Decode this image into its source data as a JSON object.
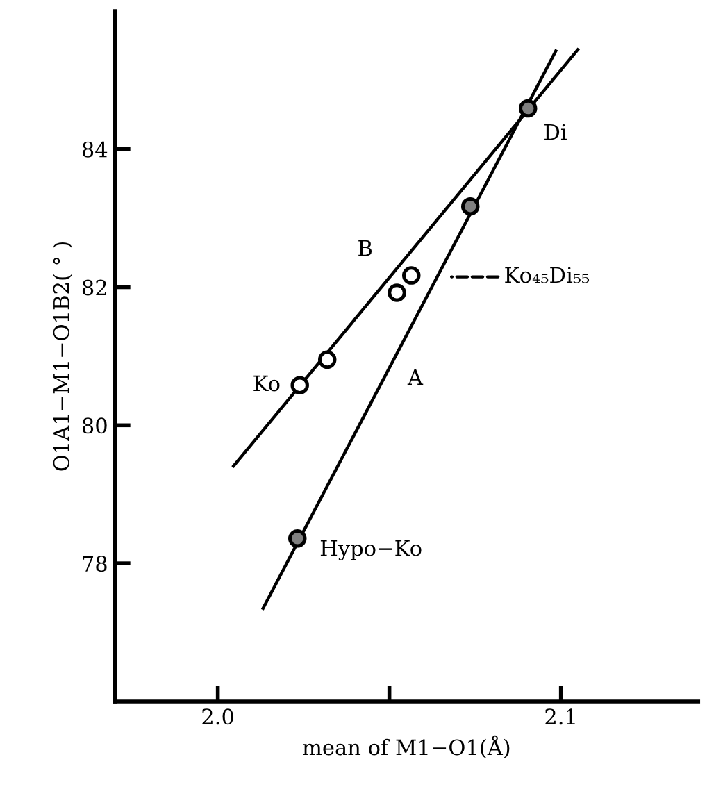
{
  "chart_data": {
    "type": "scatter",
    "xlabel": "mean of M1−O1(Å)",
    "ylabel": "O1A1−M1−O1B2( ° )",
    "xlim": [
      1.97,
      2.14
    ],
    "xticks": [
      {
        "value": 2.0,
        "label": "2.0"
      },
      {
        "value": 2.05,
        "label": null
      },
      2.1
    ],
    "ylim": [
      76,
      86
    ],
    "yticks": [
      78,
      80,
      82,
      84
    ],
    "grid": false,
    "legend": false,
    "series": [
      {
        "type": "line",
        "color": "#000000",
        "marker": "none",
        "x": [
          2.0132,
          2.0985
        ],
        "values": [
          77.35,
          85.42
        ]
      },
      {
        "type": "line",
        "color": "#000000",
        "marker": "none",
        "x": [
          2.0046,
          2.1049
        ],
        "values": [
          79.41,
          85.44
        ]
      },
      {
        "color": "#808080",
        "marker": "circle",
        "x": [
          2.0232,
          2.0736,
          2.0904
        ],
        "values": [
          78.36,
          83.17,
          84.59
        ]
      },
      {
        "color": "#ffffff",
        "marker": "circle",
        "x": [
          2.0239,
          2.0319,
          2.0522,
          2.0564
        ],
        "values": [
          80.58,
          80.95,
          81.92,
          82.17
        ]
      }
    ],
    "annotations": [
      "A",
      "B",
      "Di",
      "Ko",
      "Hypo−Ko",
      "Ko₄₅Di₅₅"
    ]
  }
}
